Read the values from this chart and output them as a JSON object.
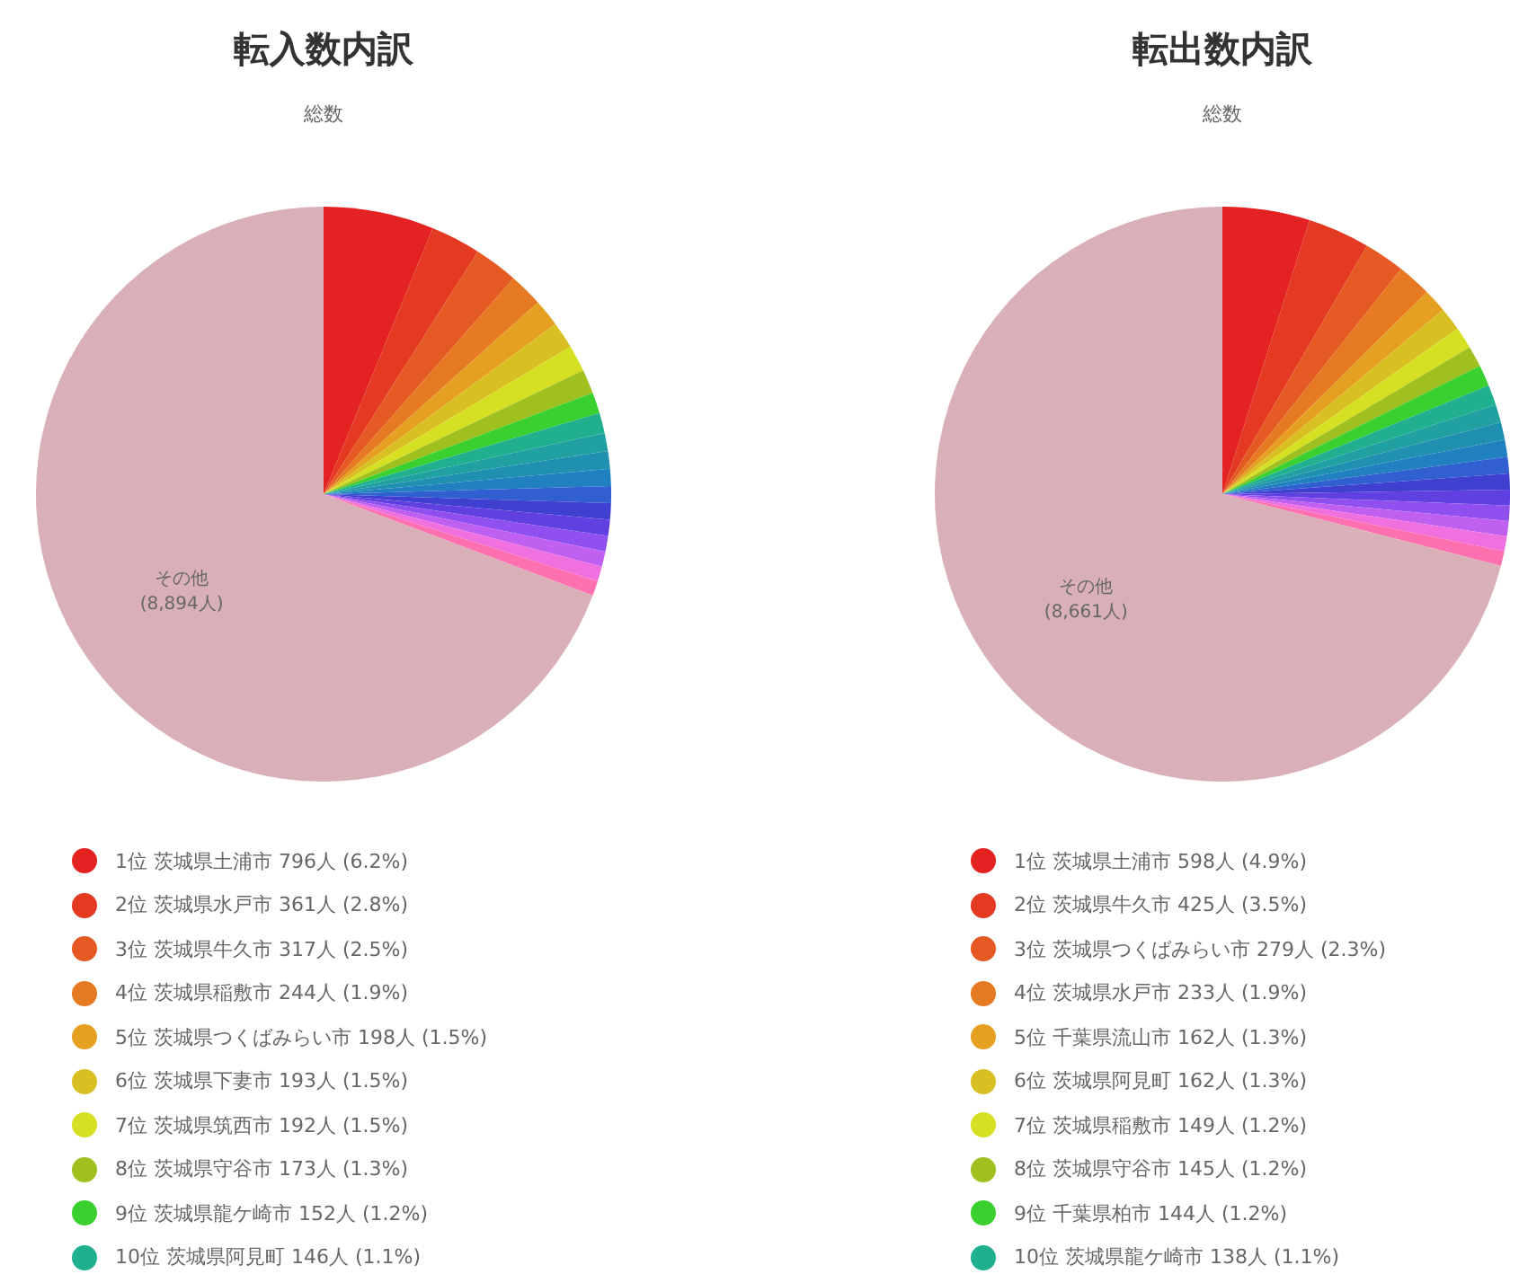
{
  "chart_data": [
    {
      "type": "pie",
      "title": "転入数内訳",
      "subtitle": "総数",
      "legend": "bottom",
      "categories": [
        "1位 茨城県土浦市 796人 (6.2%)",
        "2位 茨城県水戸市 361人 (2.8%)",
        "3位 茨城県牛久市 317人 (2.5%)",
        "4位 茨城県稲敷市 244人 (1.9%)",
        "5位 茨城県つくばみらい市 198人 (1.5%)",
        "6位 茨城県下妻市 193人 (1.5%)",
        "7位 茨城県筑西市 192人 (1.5%)",
        "8位 茨城県守谷市 173人 (1.3%)",
        "9位 茨城県龍ケ崎市 152人 (1.2%)",
        "10位 茨城県阿見町 146人 (1.1%)",
        null,
        null,
        null,
        null,
        null,
        null,
        null,
        null,
        null,
        null,
        "その他"
      ],
      "values": [
        796,
        361,
        317,
        244,
        198,
        193,
        192,
        173,
        152,
        146,
        130,
        127,
        124,
        121,
        118,
        116,
        113,
        110,
        108,
        107,
        8894
      ],
      "value_labels": [
        null,
        null,
        null,
        null,
        null,
        null,
        null,
        null,
        null,
        null,
        null,
        null,
        null,
        null,
        null,
        null,
        null,
        null,
        null,
        null,
        "(8,894人)"
      ],
      "colors": [
        "#e52222",
        "#e53a22",
        "#e55a22",
        "#e57a22",
        "#e5a022",
        "#d9c022",
        "#d6e022",
        "#a0c020",
        "#3ad030",
        "#20b090",
        "#20a0a0",
        "#2090b0",
        "#2080c0",
        "#3060d0",
        "#4040d0",
        "#6040e0",
        "#9050f0",
        "#c060f0",
        "#f070e0",
        "#ff70b0",
        "#d9b0b8"
      ]
    },
    {
      "type": "pie",
      "title": "転出数内訳",
      "subtitle": "総数",
      "legend": "bottom",
      "categories": [
        "1位 茨城県土浦市 598人 (4.9%)",
        "2位 茨城県牛久市 425人 (3.5%)",
        "3位 茨城県つくばみらい市 279人 (2.3%)",
        "4位 茨城県水戸市 233人 (1.9%)",
        "5位 千葉県流山市 162人 (1.3%)",
        "6位 茨城県阿見町 162人 (1.3%)",
        "7位 茨城県稲敷市 149人 (1.2%)",
        "8位 茨城県守谷市 145人 (1.2%)",
        "9位 千葉県柏市 144人 (1.2%)",
        "10位 茨城県龍ケ崎市 138人 (1.1%)",
        null,
        null,
        null,
        null,
        null,
        null,
        null,
        null,
        null,
        null,
        "その他"
      ],
      "values": [
        598,
        425,
        279,
        233,
        162,
        162,
        149,
        145,
        144,
        138,
        125,
        120,
        117,
        113,
        110,
        108,
        105,
        103,
        102,
        101,
        8661
      ],
      "value_labels": [
        null,
        null,
        null,
        null,
        null,
        null,
        null,
        null,
        null,
        null,
        null,
        null,
        null,
        null,
        null,
        null,
        null,
        null,
        null,
        null,
        "(8,661人)"
      ],
      "colors": [
        "#e52222",
        "#e53a22",
        "#e55a22",
        "#e57a22",
        "#e5a022",
        "#d9c022",
        "#d6e022",
        "#a0c020",
        "#3ad030",
        "#20b090",
        "#20a0a0",
        "#2090b0",
        "#2080c0",
        "#3060d0",
        "#4040d0",
        "#6040e0",
        "#9050f0",
        "#c060f0",
        "#f070e0",
        "#ff70b0",
        "#d9b0b8"
      ]
    }
  ]
}
